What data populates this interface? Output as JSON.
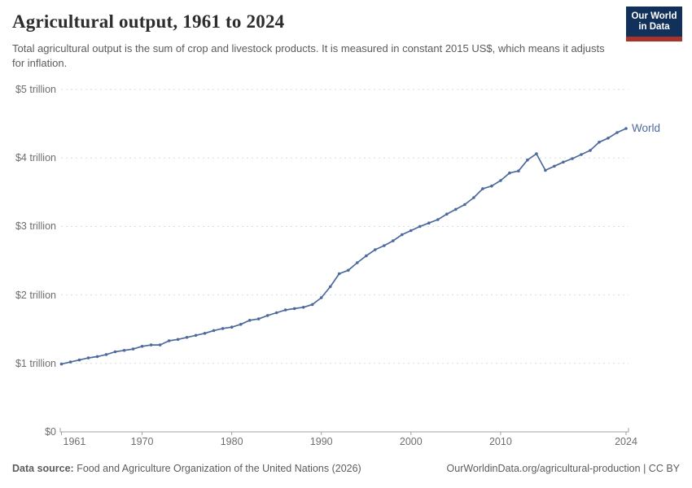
{
  "header": {
    "title": "Agricultural output, 1961 to 2024",
    "subtitle": "Total agricultural output is the sum of crop and livestock products. It is measured in constant 2015 US$, which means it adjusts for inflation.",
    "logo": {
      "line1": "Our World",
      "line2": "in Data",
      "bg_color": "#12315A",
      "stripe_color": "#A8332A",
      "text_color": "#FFFFFF"
    }
  },
  "chart_data": {
    "type": "line",
    "title": "Agricultural output, 1961 to 2024",
    "xlabel": "",
    "ylabel": "",
    "unit": "constant 2015 US$",
    "xlim": [
      1961,
      2024
    ],
    "ylim": [
      0,
      5
    ],
    "grid": "horizontal-dashed",
    "legend_position": "end-of-line",
    "x_ticks": [
      1961,
      1970,
      1980,
      1990,
      2000,
      2010,
      2024
    ],
    "y_ticks": [
      {
        "value": 0,
        "label": "$0"
      },
      {
        "value": 1,
        "label": "$1 trillion"
      },
      {
        "value": 2,
        "label": "$2 trillion"
      },
      {
        "value": 3,
        "label": "$3 trillion"
      },
      {
        "value": 4,
        "label": "$4 trillion"
      },
      {
        "value": 5,
        "label": "$5 trillion"
      }
    ],
    "series": [
      {
        "name": "World",
        "color": "#4C6A9C",
        "years": [
          1961,
          1962,
          1963,
          1964,
          1965,
          1966,
          1967,
          1968,
          1969,
          1970,
          1971,
          1972,
          1973,
          1974,
          1975,
          1976,
          1977,
          1978,
          1979,
          1980,
          1981,
          1982,
          1983,
          1984,
          1985,
          1986,
          1987,
          1988,
          1989,
          1990,
          1991,
          1992,
          1993,
          1994,
          1995,
          1996,
          1997,
          1998,
          1999,
          2000,
          2001,
          2002,
          2003,
          2004,
          2005,
          2006,
          2007,
          2008,
          2009,
          2010,
          2011,
          2012,
          2013,
          2014,
          2015,
          2016,
          2017,
          2018,
          2019,
          2020,
          2021,
          2022,
          2023,
          2024
        ],
        "values_trillion_usd": [
          0.99,
          1.02,
          1.05,
          1.08,
          1.1,
          1.13,
          1.17,
          1.19,
          1.21,
          1.25,
          1.27,
          1.27,
          1.33,
          1.35,
          1.38,
          1.41,
          1.44,
          1.48,
          1.51,
          1.53,
          1.57,
          1.63,
          1.65,
          1.7,
          1.74,
          1.78,
          1.8,
          1.82,
          1.86,
          1.96,
          2.12,
          2.31,
          2.36,
          2.47,
          2.57,
          2.66,
          2.72,
          2.79,
          2.88,
          2.94,
          3.0,
          3.05,
          3.1,
          3.18,
          3.25,
          3.32,
          3.42,
          3.55,
          3.59,
          3.67,
          3.78,
          3.81,
          3.97,
          4.06,
          3.82,
          3.88,
          3.94,
          3.99,
          4.05,
          4.11,
          4.23,
          4.29,
          4.37,
          4.43
        ]
      }
    ],
    "colors": {
      "gridline": "#dcdcdc",
      "axis": "#a1a1a1",
      "tick_label": "#6e6e6e"
    }
  },
  "footer": {
    "datasource_label": "Data source:",
    "datasource_value": " Food and Agriculture Organization of the United Nations (2026)",
    "link": "OurWorldinData.org/agricultural-production",
    "separator": " | ",
    "license": "CC BY"
  }
}
